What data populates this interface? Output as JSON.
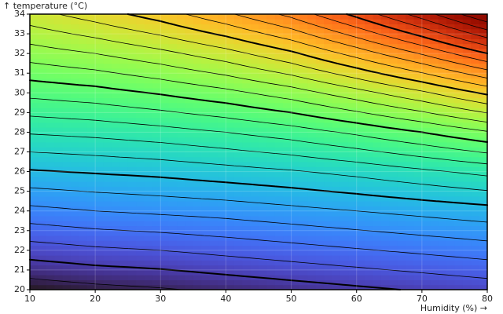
{
  "chart_data": {
    "type": "contour",
    "x_label": "Humidity (%) →",
    "y_label": "↑ temperature (°C)",
    "x": [
      10,
      20,
      30,
      40,
      50,
      60,
      70,
      80
    ],
    "y": [
      20,
      22,
      24,
      26,
      28,
      30,
      32,
      34
    ],
    "z": [
      [
        18.4,
        18.7,
        18.9,
        19.2,
        19.5,
        19.8,
        20.1,
        20.4
      ],
      [
        20.5,
        20.8,
        21.0,
        21.3,
        21.6,
        21.9,
        22.2,
        22.5
      ],
      [
        22.7,
        23.0,
        23.2,
        23.4,
        23.7,
        24.0,
        24.3,
        24.6
      ],
      [
        24.9,
        25.1,
        25.3,
        25.6,
        25.9,
        26.3,
        26.8,
        27.3
      ],
      [
        27.1,
        27.3,
        27.6,
        28.0,
        28.5,
        29.2,
        30.0,
        30.9
      ],
      [
        29.3,
        29.6,
        30.1,
        30.7,
        31.5,
        32.6,
        33.8,
        35.2
      ],
      [
        31.5,
        32.0,
        32.7,
        33.6,
        34.8,
        36.4,
        38.1,
        40.0
      ],
      [
        33.6,
        34.5,
        35.5,
        36.8,
        38.3,
        40.3,
        42.5,
        45.0
      ]
    ],
    "levels": [
      19,
      20,
      21,
      22,
      23,
      24,
      25,
      26,
      27,
      28,
      29,
      30,
      31,
      32,
      33,
      34,
      35,
      36,
      37,
      38,
      39,
      40,
      41,
      42,
      43,
      44
    ],
    "major_levels": [
      20,
      25,
      30,
      35,
      40
    ],
    "colormap": "turbo",
    "xlim": [
      10,
      80
    ],
    "ylim": [
      20,
      34
    ],
    "xticks": [
      10,
      20,
      30,
      40,
      50,
      60,
      70,
      80
    ],
    "yticks": [
      20,
      21,
      22,
      23,
      24,
      25,
      26,
      27,
      28,
      29,
      30,
      31,
      32,
      33,
      34
    ],
    "grid": true
  }
}
